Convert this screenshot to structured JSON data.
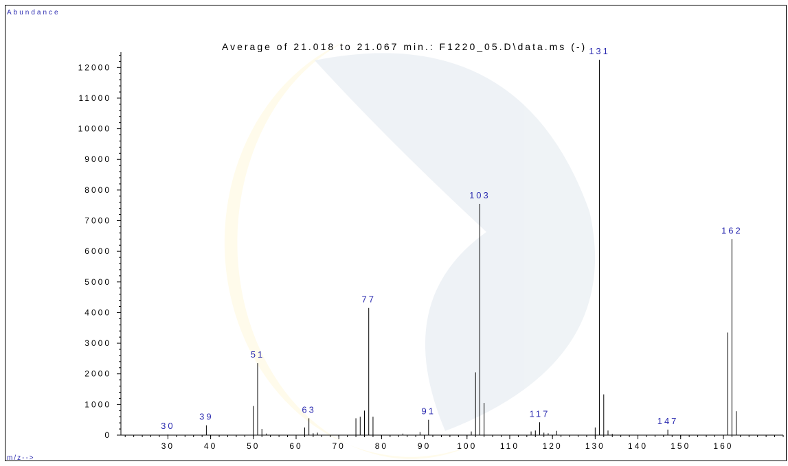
{
  "chart_data": {
    "type": "bar",
    "title": "Average of 21.018 to 21.067 min.: F1220_05.D\\data.ms (-)",
    "ylabel": "Abundance",
    "xlabel": "m/z-->",
    "xlim": [
      19,
      174
    ],
    "ylim": [
      0,
      12500
    ],
    "x_ticks": [
      30,
      40,
      50,
      60,
      70,
      80,
      90,
      100,
      110,
      120,
      130,
      140,
      150,
      160
    ],
    "y_ticks": [
      0,
      1000,
      2000,
      3000,
      4000,
      5000,
      6000,
      7000,
      8000,
      9000,
      10000,
      11000,
      12000
    ],
    "peaks": [
      {
        "mz": 30,
        "abundance": 20
      },
      {
        "mz": 39,
        "abundance": 320
      },
      {
        "mz": 50,
        "abundance": 950
      },
      {
        "mz": 51,
        "abundance": 2350
      },
      {
        "mz": 52,
        "abundance": 200
      },
      {
        "mz": 53,
        "abundance": 50
      },
      {
        "mz": 62,
        "abundance": 250
      },
      {
        "mz": 63,
        "abundance": 550
      },
      {
        "mz": 64,
        "abundance": 60
      },
      {
        "mz": 65,
        "abundance": 80
      },
      {
        "mz": 74,
        "abundance": 550
      },
      {
        "mz": 75,
        "abundance": 600
      },
      {
        "mz": 76,
        "abundance": 800
      },
      {
        "mz": 77,
        "abundance": 4150
      },
      {
        "mz": 78,
        "abundance": 600
      },
      {
        "mz": 85,
        "abundance": 50
      },
      {
        "mz": 89,
        "abundance": 100
      },
      {
        "mz": 91,
        "abundance": 500
      },
      {
        "mz": 101,
        "abundance": 120
      },
      {
        "mz": 102,
        "abundance": 2050
      },
      {
        "mz": 103,
        "abundance": 7550
      },
      {
        "mz": 104,
        "abundance": 1050
      },
      {
        "mz": 115,
        "abundance": 120
      },
      {
        "mz": 116,
        "abundance": 150
      },
      {
        "mz": 117,
        "abundance": 420
      },
      {
        "mz": 118,
        "abundance": 80
      },
      {
        "mz": 119,
        "abundance": 60
      },
      {
        "mz": 121,
        "abundance": 140
      },
      {
        "mz": 130,
        "abundance": 250
      },
      {
        "mz": 131,
        "abundance": 12250
      },
      {
        "mz": 132,
        "abundance": 1330
      },
      {
        "mz": 133,
        "abundance": 150
      },
      {
        "mz": 134,
        "abundance": 40
      },
      {
        "mz": 147,
        "abundance": 180
      },
      {
        "mz": 161,
        "abundance": 3350
      },
      {
        "mz": 162,
        "abundance": 6400
      },
      {
        "mz": 163,
        "abundance": 780
      }
    ],
    "labeled_peaks": [
      30,
      39,
      51,
      63,
      77,
      91,
      103,
      117,
      131,
      147,
      162
    ],
    "colors": {
      "axis": "#000000",
      "peak": "#000000",
      "peak_label": "#2b2bb0",
      "axis_label": "#2b2bb0"
    }
  }
}
